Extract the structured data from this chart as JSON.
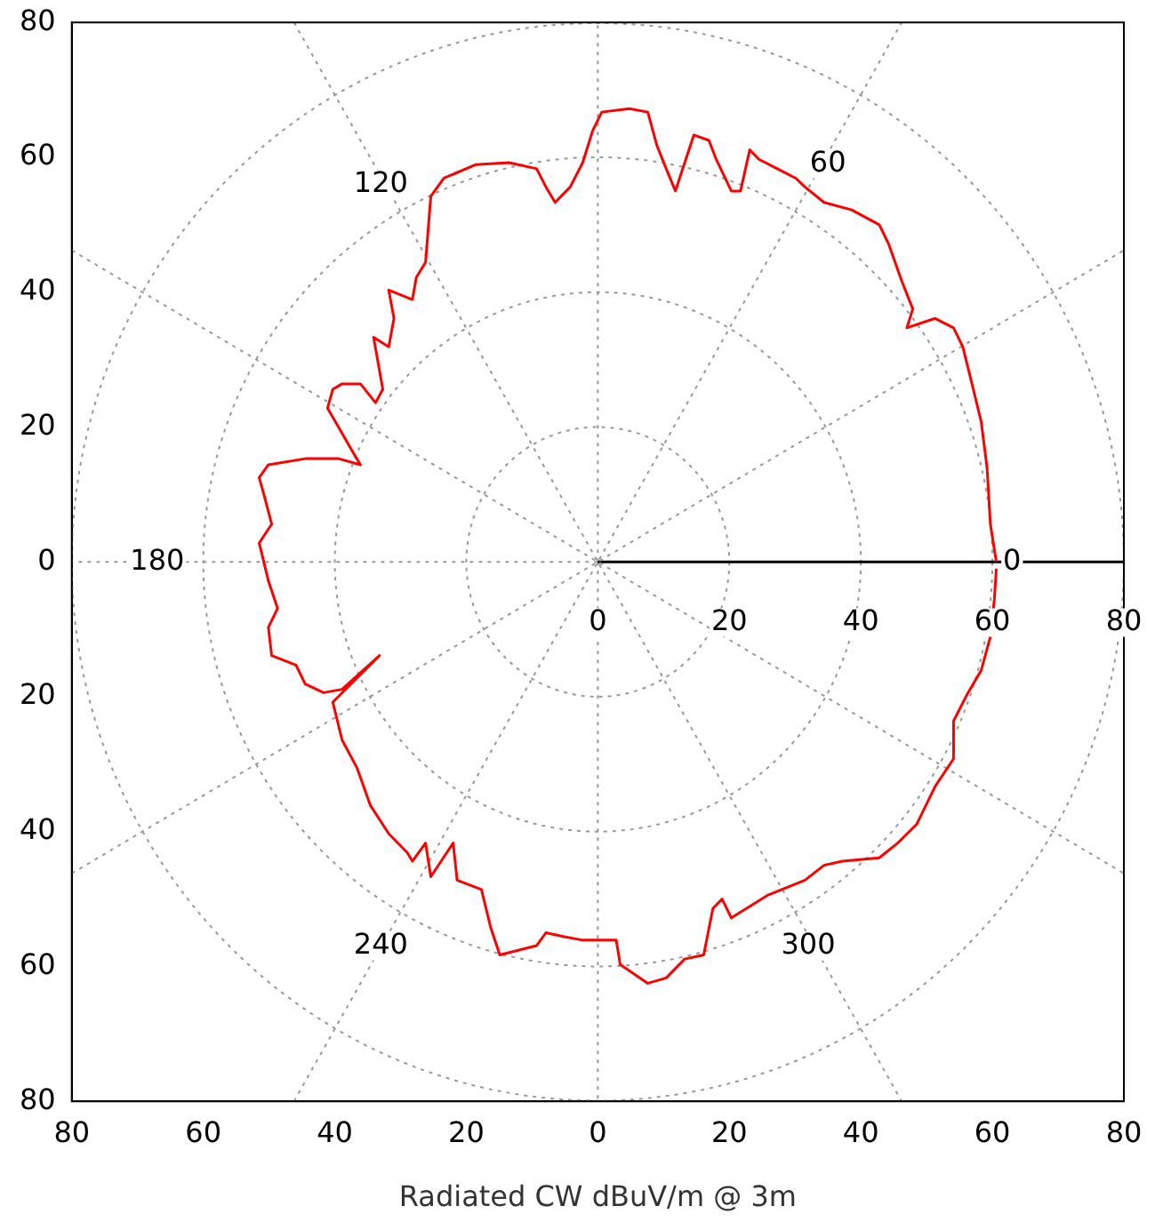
{
  "chart_data": {
    "type": "line",
    "xlabel": "Radiated CW dBuV/m @ 3m",
    "series": [
      {
        "color": "#ff0000",
        "x": [
          60.6,
          59.7,
          59.2,
          58.3,
          56.9,
          55.5,
          54.1,
          51.3,
          47.0,
          47.9,
          46.2,
          44.2,
          42.8,
          38.6,
          34.4,
          31.5,
          30.1,
          27.3,
          24.5,
          23.1,
          21.7,
          20.3,
          18.0,
          16.9,
          14.6,
          11.8,
          10.4,
          9.0,
          7.6,
          4.8,
          0.6,
          -0.8,
          -2.3,
          -4.2,
          -6.5,
          -7.9,
          -9.3,
          -13.5,
          -18.6,
          -23.4,
          -25.4,
          -26.2,
          -27.6,
          -28.2,
          -31.8,
          -31.0,
          -31.8,
          -34.1,
          -32.7,
          -33.8,
          -36.1,
          -38.9,
          -40.3,
          -41.1,
          -37.5,
          -36.1,
          -39.4,
          -44.5,
          -50.1,
          -51.5,
          -50.7,
          -49.6,
          -51.5,
          -50.1,
          -48.7,
          -50.1,
          -49.6,
          -45.9,
          -44.5,
          -41.7,
          -38.9,
          -33.2,
          -40.3,
          -38.9,
          -36.6,
          -34.6,
          -31.8,
          -29.0,
          -28.2,
          -26.2,
          -25.4,
          -22.0,
          -21.4,
          -17.7,
          -16.3,
          -14.9,
          -9.3,
          -7.9,
          -5.1,
          -2.3,
          2.8,
          3.4,
          7.6,
          10.4,
          13.2,
          16.1,
          17.5,
          18.9,
          20.3,
          25.9,
          31.5,
          34.4,
          37.2,
          42.8,
          45.6,
          48.5,
          51.3,
          54.1,
          54.1,
          56.3,
          58.3,
          59.7,
          60.3,
          60.6
        ],
        "values": [
          0,
          5.6,
          13.9,
          20.8,
          26.4,
          31.9,
          34.7,
          36.1,
          34.7,
          37.5,
          41.7,
          47.2,
          50,
          52.2,
          53.3,
          55.6,
          56.9,
          58.3,
          59.7,
          61.1,
          55,
          55,
          59.7,
          62.5,
          63.3,
          55,
          58.3,
          61.7,
          66.7,
          67.2,
          66.7,
          63.9,
          59.2,
          55.6,
          53.3,
          55.6,
          58.3,
          59.2,
          58.9,
          56.9,
          54.2,
          44.4,
          42.2,
          38.9,
          40.3,
          36.1,
          31.9,
          33.3,
          25.6,
          23.6,
          26.4,
          26.4,
          25.6,
          22.8,
          16.7,
          14.4,
          15.3,
          15.3,
          14.4,
          12.5,
          9.7,
          5.6,
          2.8,
          -2.8,
          -6.9,
          -9.7,
          -13.9,
          -15.3,
          -18.1,
          -19.4,
          -18.9,
          -13.9,
          -20.8,
          -26.4,
          -30.6,
          -36.1,
          -40.3,
          -43.1,
          -44.4,
          -41.7,
          -46.7,
          -41.7,
          -47.2,
          -48.6,
          -54.2,
          -58.3,
          -56.9,
          -55,
          -55.6,
          -56.1,
          -56.1,
          -59.7,
          -62.5,
          -61.7,
          -58.9,
          -58.3,
          -51.4,
          -50,
          -52.8,
          -49.4,
          -47.2,
          -45,
          -44.4,
          -43.9,
          -41.7,
          -38.9,
          -33.3,
          -29.2,
          -23.6,
          -19.4,
          -16.1,
          -11.1,
          -5.6,
          -1
        ]
      },
      {
        "color": "#999999",
        "line_style": "dotted",
        "x": [
          -80,
          80
        ],
        "values": [
          -46.2,
          46.2
        ]
      },
      {
        "color": "#999999",
        "line_style": "dotted",
        "x": [
          -46.2,
          46.2
        ],
        "values": [
          -80,
          80
        ]
      },
      {
        "color": "#999999",
        "line_style": "dotted",
        "x": [
          -46.2,
          46.2
        ],
        "values": [
          80,
          -80
        ]
      },
      {
        "color": "#999999",
        "line_style": "dotted",
        "x": [
          -80,
          80
        ],
        "values": [
          46.2,
          -46.2
        ]
      }
    ],
    "ref_lines": [
      {
        "axis": "y",
        "value": 0,
        "color": "#000000"
      }
    ],
    "xlim": [
      -80,
      80
    ],
    "ylim": [
      -80,
      80
    ],
    "xticks": [
      {
        "value": -80,
        "label": "80"
      },
      {
        "value": -60,
        "label": "60"
      },
      {
        "value": -40,
        "label": "40"
      },
      {
        "value": -20,
        "label": "20"
      },
      0,
      20,
      40,
      60,
      80
    ],
    "yticks": [
      {
        "value": -80,
        "label": "80"
      },
      {
        "value": -60,
        "label": "60"
      },
      {
        "value": -40,
        "label": "40"
      },
      {
        "value": -20,
        "label": "20"
      },
      0,
      20,
      40,
      60,
      80
    ],
    "grid": true,
    "marker": "none",
    "line_style": "solid",
    "annotations": [
      {
        "text": "0",
        "x": 63,
        "y": 0
      },
      {
        "text": "60",
        "x": 35,
        "y": 59
      },
      {
        "text": "120",
        "x": -33,
        "y": 56
      },
      {
        "text": "180",
        "x": -67,
        "y": 0
      },
      {
        "text": "240",
        "x": -33,
        "y": -57
      },
      {
        "text": "300",
        "x": 32,
        "y": -57
      },
      {
        "text": "0",
        "x": 0,
        "y": -9
      },
      {
        "text": "20",
        "x": 20,
        "y": -9
      },
      {
        "text": "40",
        "x": 40,
        "y": -9
      },
      {
        "text": "60",
        "x": 60,
        "y": -9
      },
      {
        "text": "80",
        "x": 80,
        "y": -9
      }
    ]
  }
}
